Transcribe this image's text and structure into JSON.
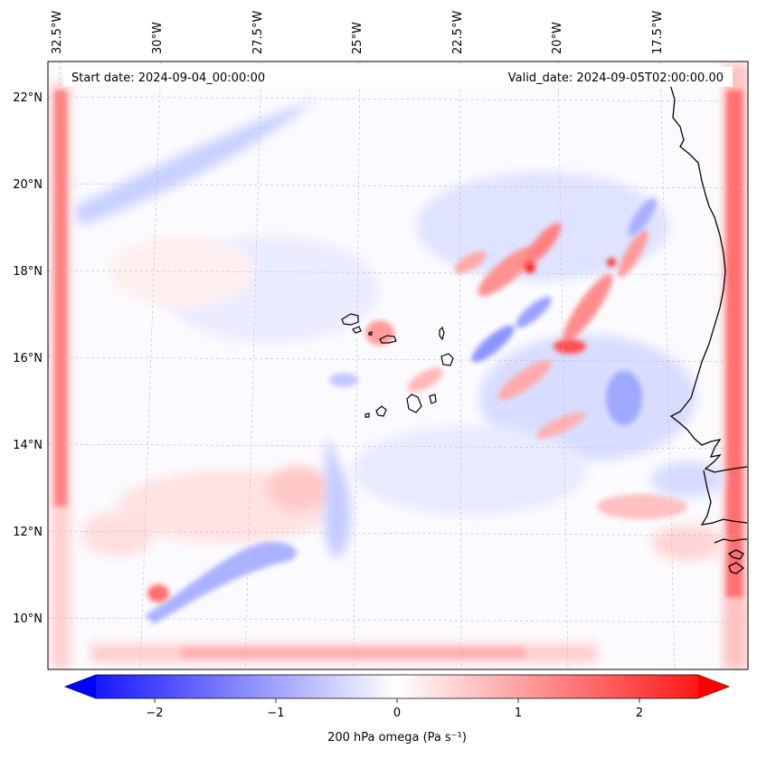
{
  "header": {
    "start_date": "Start date: 2024-09-04_00:00:00",
    "valid_date": "Valid_date: 2024-09-05T02:00:00.00"
  },
  "longitude_labels": [
    "32.5°W",
    "30°W",
    "27.5°W",
    "25°W",
    "22.5°W",
    "20°W",
    "17.5°W"
  ],
  "latitude_labels": [
    "22°N",
    "20°N",
    "18°N",
    "16°N",
    "14°N",
    "12°N",
    "10°N"
  ],
  "colorbar": {
    "ticks": [
      "−2",
      "−1",
      "0",
      "1",
      "2"
    ],
    "tick_values": [
      -2,
      -1,
      0,
      1,
      2
    ],
    "range": [
      -2.75,
      2.75
    ],
    "label": "200 hPa omega (Pa s⁻¹)",
    "colormap": "bwr",
    "extend": "both"
  },
  "colors": {
    "negative": "#0000ff",
    "zero": "#ffffff",
    "positive": "#ff0000",
    "coastline": "#000000"
  }
}
